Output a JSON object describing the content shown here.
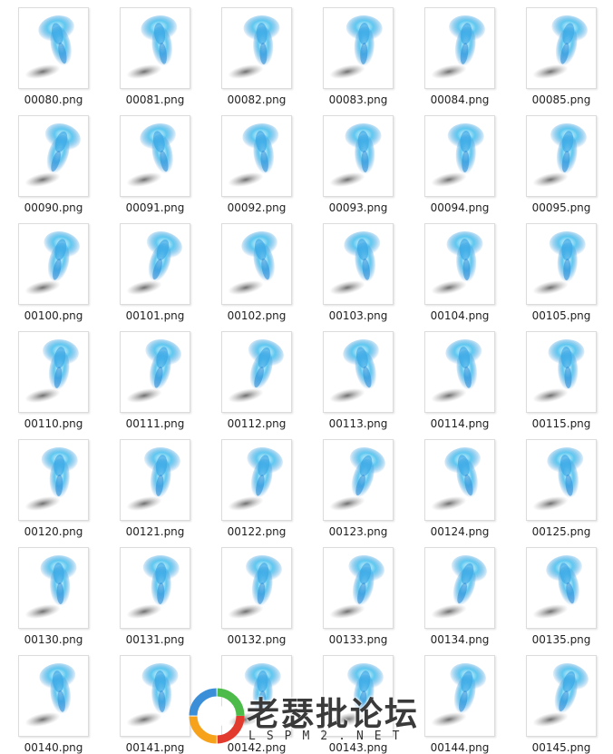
{
  "grid": {
    "rows": [
      [
        "00080.png",
        "00081.png",
        "00082.png",
        "00083.png",
        "00084.png",
        "00085.png"
      ],
      [
        "00090.png",
        "00091.png",
        "00092.png",
        "00093.png",
        "00094.png",
        "00095.png"
      ],
      [
        "00100.png",
        "00101.png",
        "00102.png",
        "00103.png",
        "00104.png",
        "00105.png"
      ],
      [
        "00110.png",
        "00111.png",
        "00112.png",
        "00113.png",
        "00114.png",
        "00115.png"
      ],
      [
        "00120.png",
        "00121.png",
        "00122.png",
        "00123.png",
        "00124.png",
        "00125.png"
      ],
      [
        "00130.png",
        "00131.png",
        "00132.png",
        "00133.png",
        "00134.png",
        "00135.png"
      ],
      [
        "00140.png",
        "00141.png",
        "00142.png",
        "00143.png",
        "00144.png",
        "00145.png"
      ]
    ]
  },
  "watermark": {
    "title": "老瑟批论坛",
    "subtitle": "LSPM2.NET"
  }
}
